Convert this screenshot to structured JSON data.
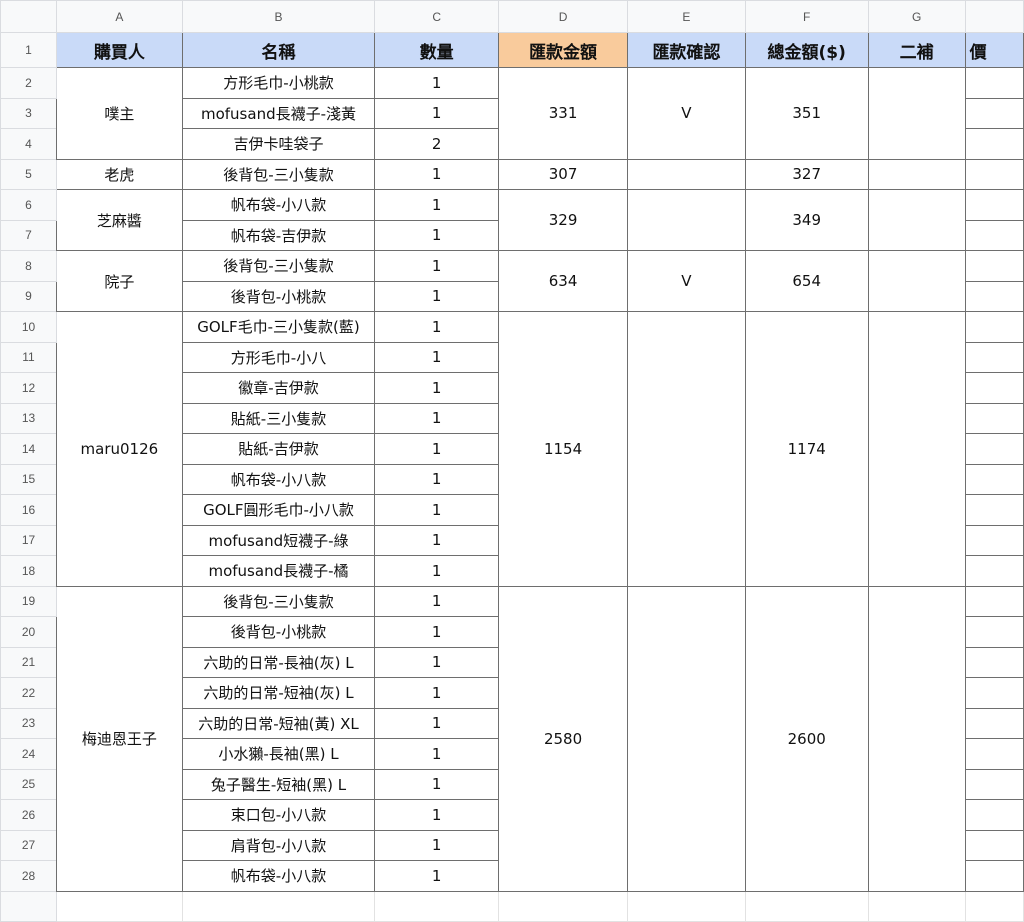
{
  "columns": [
    "",
    "A",
    "B",
    "C",
    "D",
    "E",
    "F",
    "G",
    ""
  ],
  "header_row": {
    "number": "1",
    "cells": [
      "購買人",
      "名稱",
      "數量",
      "匯款金額",
      "匯款確認",
      "總金額($)",
      "二補",
      "價"
    ],
    "colors": {
      "blue": "#c9daf8",
      "orange": "#f9cb9c"
    }
  },
  "groups": [
    {
      "buyer": "噗主",
      "amount": "331",
      "confirm": "V",
      "total": "351",
      "items": [
        {
          "row": "2",
          "name": "方形毛巾-小桃款",
          "qty": "1"
        },
        {
          "row": "3",
          "name": "mofusand長襪子-淺黃",
          "qty": "1"
        },
        {
          "row": "4",
          "name": "吉伊卡哇袋子",
          "qty": "2"
        }
      ]
    },
    {
      "buyer": "老虎",
      "amount": "307",
      "confirm": "",
      "total": "327",
      "items": [
        {
          "row": "5",
          "name": "後背包-三小隻款",
          "qty": "1"
        }
      ]
    },
    {
      "buyer": "芝麻醬",
      "amount": "329",
      "confirm": "",
      "total": "349",
      "items": [
        {
          "row": "6",
          "name": "帆布袋-小八款",
          "qty": "1"
        },
        {
          "row": "7",
          "name": "帆布袋-吉伊款",
          "qty": "1"
        }
      ]
    },
    {
      "buyer": "院子",
      "amount": "634",
      "confirm": "V",
      "total": "654",
      "items": [
        {
          "row": "8",
          "name": "後背包-三小隻款",
          "qty": "1"
        },
        {
          "row": "9",
          "name": "後背包-小桃款",
          "qty": "1"
        }
      ]
    },
    {
      "buyer": "maru0126",
      "amount": "1154",
      "confirm": "",
      "total": "1174",
      "items": [
        {
          "row": "10",
          "name": "GOLF毛巾-三小隻款(藍)",
          "qty": "1"
        },
        {
          "row": "11",
          "name": "方形毛巾-小八",
          "qty": "1"
        },
        {
          "row": "12",
          "name": "徽章-吉伊款",
          "qty": "1"
        },
        {
          "row": "13",
          "name": "貼紙-三小隻款",
          "qty": "1"
        },
        {
          "row": "14",
          "name": "貼紙-吉伊款",
          "qty": "1"
        },
        {
          "row": "15",
          "name": "帆布袋-小八款",
          "qty": "1"
        },
        {
          "row": "16",
          "name": "GOLF圓形毛巾-小八款",
          "qty": "1"
        },
        {
          "row": "17",
          "name": "mofusand短襪子-綠",
          "qty": "1"
        },
        {
          "row": "18",
          "name": "mofusand長襪子-橘",
          "qty": "1"
        }
      ]
    },
    {
      "buyer": "梅迪恩王子",
      "amount": "2580",
      "confirm": "",
      "total": "2600",
      "items": [
        {
          "row": "19",
          "name": "後背包-三小隻款",
          "qty": "1"
        },
        {
          "row": "20",
          "name": "後背包-小桃款",
          "qty": "1"
        },
        {
          "row": "21",
          "name": "六助的日常-長袖(灰) L",
          "qty": "1"
        },
        {
          "row": "22",
          "name": "六助的日常-短袖(灰) L",
          "qty": "1"
        },
        {
          "row": "23",
          "name": "六助的日常-短袖(黃) XL",
          "qty": "1"
        },
        {
          "row": "24",
          "name": "小水獺-長袖(黑) L",
          "qty": "1"
        },
        {
          "row": "25",
          "name": "兔子醫生-短袖(黑) L",
          "qty": "1"
        },
        {
          "row": "26",
          "name": "束口包-小八款",
          "qty": "1"
        },
        {
          "row": "27",
          "name": "肩背包-小八款",
          "qty": "1"
        },
        {
          "row": "28",
          "name": "帆布袋-小八款",
          "qty": "1"
        }
      ]
    }
  ]
}
